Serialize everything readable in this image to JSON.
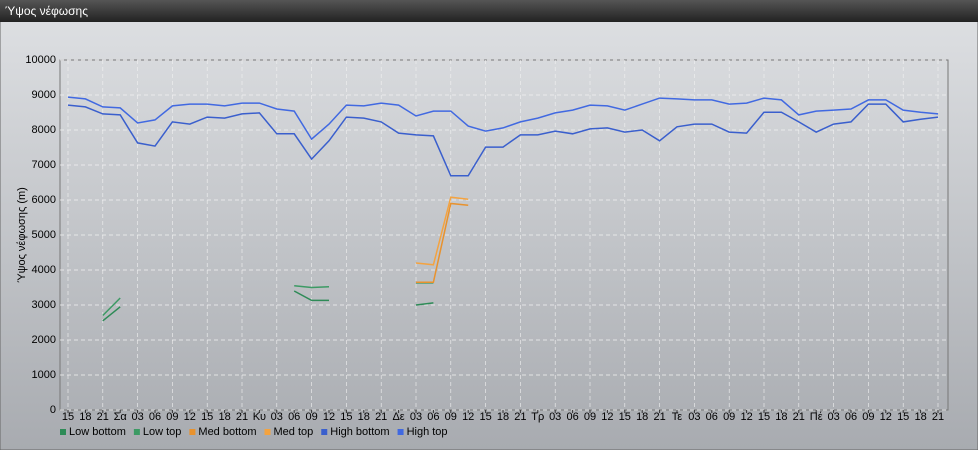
{
  "chart_data": {
    "type": "line",
    "title": "Ύψος νέφωσης",
    "y_label": "Ύψος νέφωσης (m)",
    "categories": [
      "15",
      "18",
      "21",
      "Σα",
      "03",
      "06",
      "09",
      "12",
      "15",
      "18",
      "21",
      "Κυ",
      "03",
      "06",
      "09",
      "12",
      "15",
      "18",
      "21",
      "Δε",
      "03",
      "06",
      "09",
      "12",
      "15",
      "18",
      "21",
      "Τρ",
      "03",
      "06",
      "09",
      "12",
      "15",
      "18",
      "21",
      "Τε",
      "03",
      "06",
      "09",
      "12",
      "15",
      "18",
      "21",
      "Πέ",
      "03",
      "06",
      "09",
      "12",
      "15",
      "18",
      "21"
    ],
    "ylim": [
      0,
      10000
    ],
    "yticks": [
      0,
      1000,
      2000,
      3000,
      4000,
      5000,
      6000,
      7000,
      8000,
      9000,
      10000
    ],
    "grid": true,
    "legend": "bottom",
    "series": [
      {
        "name": "Low bottom",
        "color": "#2e8b57",
        "values": [
          null,
          null,
          2550,
          2950,
          null,
          null,
          null,
          null,
          null,
          null,
          null,
          null,
          null,
          3400,
          3130,
          3130,
          null,
          null,
          null,
          null,
          3000,
          3060,
          null,
          null,
          null,
          null,
          null,
          null,
          null,
          null,
          null,
          null,
          null,
          null,
          null,
          null,
          null,
          null,
          null,
          null,
          null,
          null,
          null,
          null,
          null,
          null,
          null,
          null,
          null,
          null,
          null
        ]
      },
      {
        "name": "Low top",
        "color": "#3c9a64",
        "values": [
          null,
          null,
          2700,
          3200,
          null,
          null,
          null,
          null,
          null,
          null,
          null,
          null,
          null,
          3550,
          3500,
          3520,
          null,
          null,
          null,
          null,
          3630,
          3630,
          null,
          null,
          null,
          null,
          null,
          null,
          null,
          null,
          null,
          null,
          null,
          null,
          null,
          null,
          null,
          null,
          null,
          null,
          null,
          null,
          null,
          null,
          null,
          null,
          null,
          null,
          null,
          null,
          null
        ]
      },
      {
        "name": "Med bottom",
        "color": "#e8922e",
        "values": [
          null,
          null,
          null,
          null,
          null,
          null,
          null,
          null,
          null,
          null,
          null,
          null,
          null,
          null,
          null,
          null,
          null,
          null,
          null,
          null,
          3650,
          3650,
          5900,
          5850,
          null,
          null,
          null,
          null,
          null,
          null,
          null,
          null,
          null,
          null,
          null,
          null,
          null,
          null,
          null,
          null,
          null,
          null,
          null,
          null,
          null,
          null,
          null,
          null,
          null,
          null,
          null
        ]
      },
      {
        "name": "Med top",
        "color": "#f4a340",
        "values": [
          null,
          null,
          null,
          null,
          null,
          null,
          null,
          null,
          null,
          null,
          null,
          null,
          null,
          null,
          null,
          null,
          null,
          null,
          null,
          null,
          4200,
          4150,
          6080,
          6020,
          null,
          null,
          null,
          null,
          null,
          null,
          null,
          null,
          null,
          null,
          null,
          null,
          null,
          null,
          null,
          null,
          null,
          null,
          null,
          null,
          null,
          null,
          null,
          null,
          null,
          null,
          null
        ]
      },
      {
        "name": "High bottom",
        "color": "#3a5fcd",
        "values": [
          8710,
          8660,
          8460,
          8430,
          7630,
          7540,
          8230,
          8170,
          8370,
          8340,
          8460,
          8490,
          7890,
          7890,
          7170,
          7690,
          8370,
          8340,
          8230,
          7910,
          7860,
          7830,
          6690,
          6690,
          7510,
          7510,
          7860,
          7860,
          7970,
          7890,
          8030,
          8060,
          7940,
          8000,
          7690,
          8090,
          8170,
          8170,
          7940,
          7910,
          8510,
          8510,
          8230,
          7940,
          8170,
          8230,
          8740,
          8740,
          8230,
          8310,
          8370
        ]
      },
      {
        "name": "High top",
        "color": "#4169e1",
        "values": [
          8940,
          8890,
          8660,
          8630,
          8200,
          8290,
          8690,
          8740,
          8740,
          8690,
          8770,
          8770,
          8600,
          8540,
          7740,
          8170,
          8710,
          8690,
          8770,
          8710,
          8400,
          8540,
          8540,
          8110,
          7970,
          8060,
          8230,
          8340,
          8490,
          8570,
          8710,
          8690,
          8570,
          8740,
          8910,
          8890,
          8860,
          8860,
          8740,
          8770,
          8910,
          8860,
          8430,
          8540,
          8570,
          8600,
          8860,
          8860,
          8570,
          8510,
          8460
        ]
      }
    ]
  }
}
